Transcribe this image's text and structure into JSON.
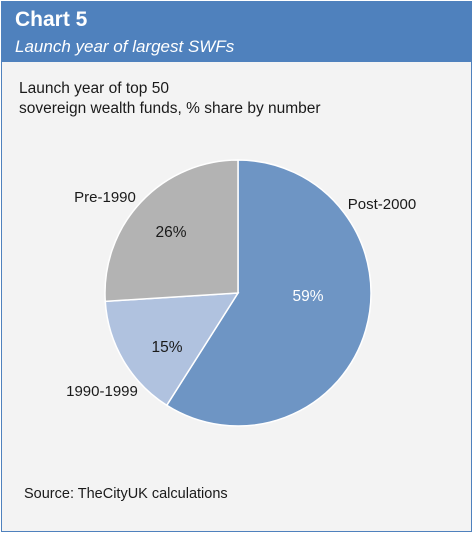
{
  "header": {
    "chart_number": "Chart 5",
    "chart_title": "Launch year of largest SWFs"
  },
  "subtitle_lines": [
    "Launch year of top 50",
    "sovereign wealth funds, % share by number"
  ],
  "source": "Source: TheCityUK calculations",
  "colors": {
    "header": "#4f81bd",
    "background": "#f3f3f3",
    "post_2000": "#6e95c4",
    "range_1990_1999": "#b0c2df",
    "pre_1990": "#b3b3b3"
  },
  "chart_data": {
    "type": "pie",
    "title": "",
    "categories": [
      "Post-2000",
      "1990-1999",
      "Pre-1990"
    ],
    "values": [
      59,
      15,
      26
    ],
    "value_labels": [
      "59%",
      "15%",
      "26%"
    ],
    "colors": [
      "#6e95c4",
      "#b0c2df",
      "#b3b3b3"
    ],
    "start_angle_deg": 0,
    "direction": "clockwise"
  }
}
